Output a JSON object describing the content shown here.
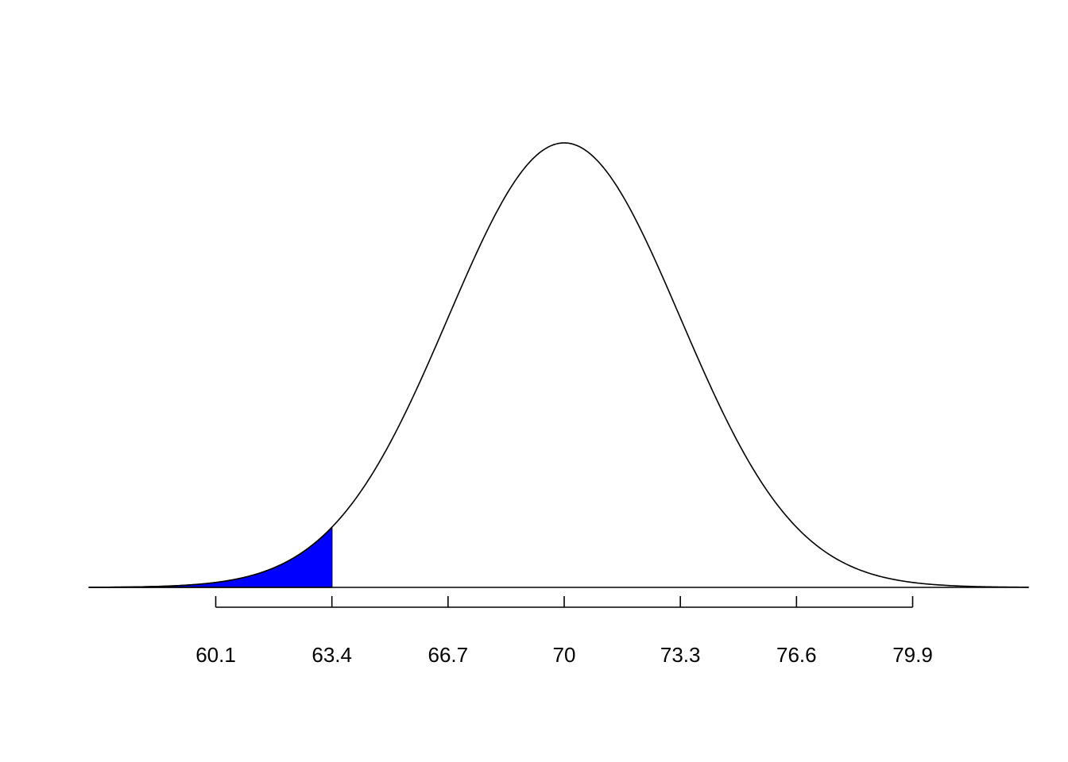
{
  "chart_data": {
    "type": "area",
    "title": "",
    "xlabel": "",
    "ylabel": "",
    "distribution": "normal",
    "mean": 70,
    "sd": 3.3,
    "xlim": [
      56.5,
      83.2
    ],
    "tick_labels": [
      "60.1",
      "63.4",
      "66.7",
      "70",
      "73.3",
      "76.6",
      "79.9"
    ],
    "tick_values": [
      60.1,
      63.4,
      66.7,
      70,
      73.3,
      76.6,
      79.9
    ],
    "shaded_region": {
      "from": 56.5,
      "to": 63.4,
      "tail": "lower"
    },
    "grid": false,
    "legend": "none"
  },
  "colors": {
    "curve": "#000000",
    "shade": "#0000FF",
    "axis": "#000000",
    "background": "#FFFFFF"
  }
}
